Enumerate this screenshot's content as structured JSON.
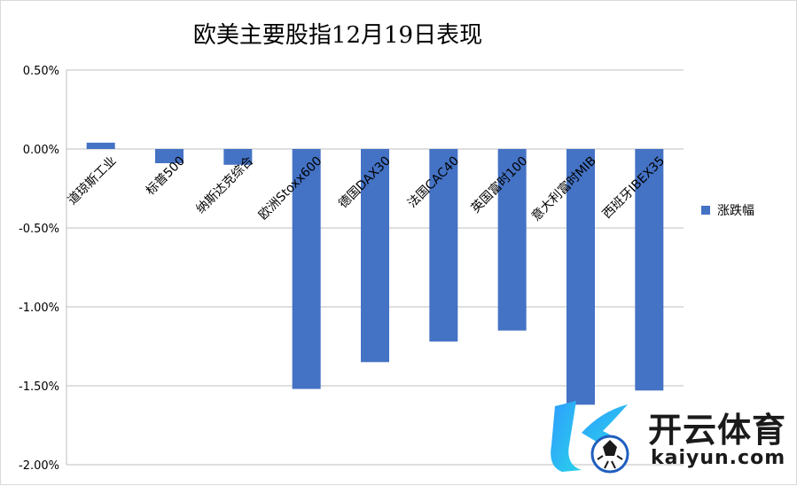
{
  "chart_data": {
    "type": "bar",
    "title": "欧美主要股指12月19日表现",
    "categories": [
      "道琼斯工业",
      "标普500",
      "纳斯达克综合",
      "欧洲Stoxx600",
      "德国DAX30",
      "法国CAC40",
      "英国富时100",
      "意大利富时MIB",
      "西班牙IBEX35"
    ],
    "series": [
      {
        "name": "涨跌幅",
        "values": [
          0.04,
          -0.09,
          -0.1,
          -1.52,
          -1.35,
          -1.22,
          -1.15,
          -1.62,
          -1.53
        ],
        "color": "#4472c4"
      }
    ],
    "y_ticks": [
      "0.50%",
      "0.00%",
      "-0.50%",
      "-1.00%",
      "-1.50%",
      "-2.00%"
    ],
    "ylim": [
      -2.0,
      0.5
    ],
    "unit": "%",
    "legend_position": "right",
    "grid": true
  },
  "watermark": {
    "name_cn": "开云体育",
    "name_en": "kaiyun.com",
    "logo_icon": "kaiyun-logo-icon"
  }
}
